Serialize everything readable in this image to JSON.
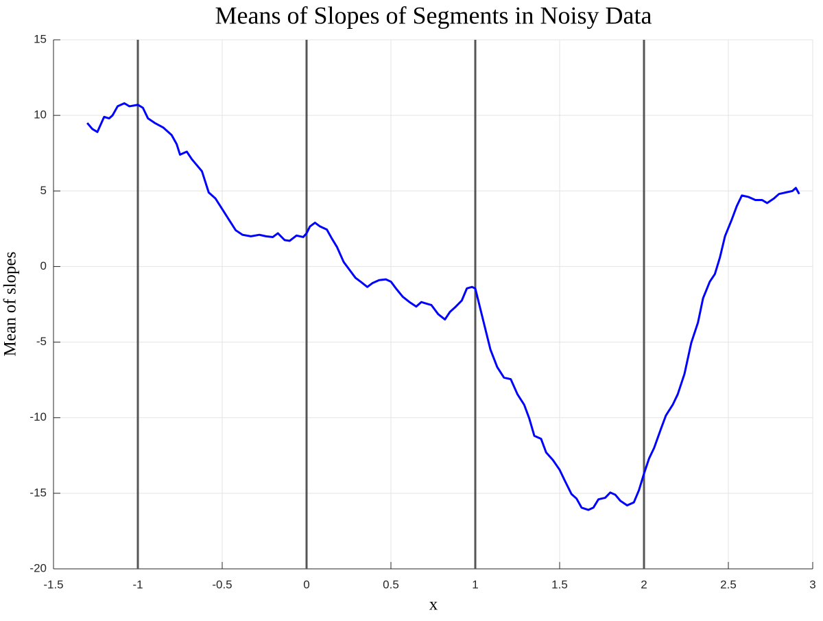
{
  "chart_data": {
    "type": "line",
    "title": "Means of Slopes of Segments in Noisy Data",
    "xlabel": "x",
    "ylabel": "Mean of slopes",
    "x": [
      -1.3,
      -1.27,
      -1.24,
      -1.2,
      -1.17,
      -1.15,
      -1.12,
      -1.08,
      -1.05,
      -1.0,
      -0.97,
      -0.94,
      -0.9,
      -0.85,
      -0.8,
      -0.77,
      -0.75,
      -0.71,
      -0.68,
      -0.65,
      -0.62,
      -0.58,
      -0.54,
      -0.5,
      -0.46,
      -0.42,
      -0.38,
      -0.33,
      -0.28,
      -0.24,
      -0.2,
      -0.17,
      -0.13,
      -0.1,
      -0.06,
      -0.02,
      0.0,
      0.02,
      0.05,
      0.08,
      0.12,
      0.15,
      0.18,
      0.22,
      0.25,
      0.29,
      0.32,
      0.36,
      0.39,
      0.43,
      0.47,
      0.5,
      0.53,
      0.57,
      0.61,
      0.65,
      0.68,
      0.71,
      0.74,
      0.78,
      0.82,
      0.85,
      0.88,
      0.92,
      0.95,
      0.98,
      1.0,
      1.03,
      1.06,
      1.09,
      1.13,
      1.17,
      1.21,
      1.25,
      1.29,
      1.32,
      1.35,
      1.39,
      1.42,
      1.46,
      1.5,
      1.53,
      1.57,
      1.6,
      1.63,
      1.67,
      1.7,
      1.73,
      1.77,
      1.8,
      1.83,
      1.86,
      1.9,
      1.94,
      1.97,
      2.0,
      2.03,
      2.06,
      2.1,
      2.13,
      2.17,
      2.2,
      2.24,
      2.28,
      2.32,
      2.35,
      2.39,
      2.42,
      2.45,
      2.48,
      2.52,
      2.55,
      2.58,
      2.62,
      2.66,
      2.7,
      2.73,
      2.77,
      2.8,
      2.84,
      2.88,
      2.9,
      2.92
    ],
    "series": [
      {
        "color": "#0000ff",
        "values": [
          9.5,
          9.1,
          8.9,
          9.9,
          9.8,
          10.0,
          10.6,
          10.8,
          10.6,
          10.7,
          10.5,
          9.8,
          9.5,
          9.2,
          8.7,
          8.1,
          7.4,
          7.6,
          7.1,
          6.7,
          6.3,
          4.9,
          4.5,
          3.8,
          3.1,
          2.4,
          2.1,
          2.0,
          2.1,
          2.0,
          1.95,
          2.2,
          1.75,
          1.7,
          2.05,
          1.95,
          2.2,
          2.65,
          2.9,
          2.65,
          2.45,
          1.85,
          1.3,
          0.3,
          -0.15,
          -0.75,
          -1.0,
          -1.35,
          -1.1,
          -0.9,
          -0.85,
          -1.0,
          -1.45,
          -2.0,
          -2.35,
          -2.65,
          -2.35,
          -2.45,
          -2.55,
          -3.15,
          -3.5,
          -3.0,
          -2.7,
          -2.25,
          -1.45,
          -1.35,
          -1.45,
          -2.8,
          -4.15,
          -5.5,
          -6.65,
          -7.35,
          -7.45,
          -8.45,
          -9.15,
          -10.05,
          -11.2,
          -11.4,
          -12.3,
          -12.8,
          -13.45,
          -14.15,
          -15.05,
          -15.35,
          -15.95,
          -16.1,
          -15.95,
          -15.4,
          -15.3,
          -14.95,
          -15.1,
          -15.5,
          -15.8,
          -15.6,
          -14.8,
          -13.7,
          -12.7,
          -12.0,
          -10.75,
          -9.85,
          -9.15,
          -8.45,
          -7.1,
          -5.05,
          -3.7,
          -2.1,
          -1.0,
          -0.5,
          0.6,
          2.0,
          3.1,
          4.0,
          4.7,
          4.6,
          4.4,
          4.4,
          4.2,
          4.5,
          4.8,
          4.9,
          5.0,
          5.2,
          4.8
        ]
      }
    ],
    "vlines": [
      -1,
      0,
      1,
      2
    ],
    "vline_color": "#555555",
    "xlim": [
      -1.5,
      3
    ],
    "xticks": [
      -1.5,
      -1,
      -0.5,
      0,
      0.5,
      1,
      1.5,
      2,
      2.5,
      3
    ],
    "ylim": [
      -20,
      15
    ],
    "yticks": [
      -20,
      -15,
      -10,
      -5,
      0,
      5,
      10,
      15
    ],
    "grid": true
  }
}
